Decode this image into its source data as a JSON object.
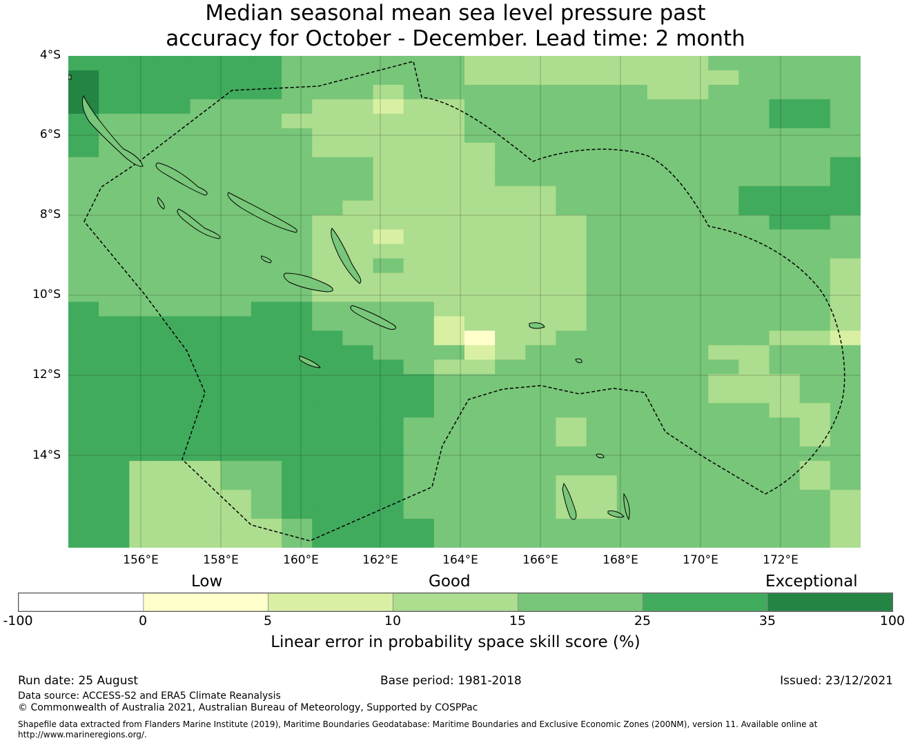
{
  "title": {
    "line1": "Median seasonal mean sea level pressure past",
    "line2": "accuracy for October - December. Lead time: 2 month"
  },
  "map": {
    "lat_labels": [
      "4°S",
      "6°S",
      "8°S",
      "10°S",
      "12°S",
      "14°S"
    ],
    "lon_labels": [
      "156°E",
      "158°E",
      "160°E",
      "162°E",
      "164°E",
      "166°E",
      "168°E",
      "170°E",
      "172°E"
    ],
    "extent": {
      "lon_min": 154.2,
      "lon_max": 174.0,
      "lat_min": -16.3,
      "lat_max": -4.0
    },
    "grid_resolution_deg": 0.83
  },
  "colorbar": {
    "category_labels": [
      "Low",
      "Good",
      "Exceptional"
    ],
    "ticks": [
      "-100",
      "0",
      "5",
      "10",
      "15",
      "25",
      "35",
      "100"
    ],
    "colors": [
      "#ffffff",
      "#ffffcc",
      "#d9f0a3",
      "#addd8e",
      "#78c679",
      "#41ab5d",
      "#238443"
    ],
    "title": "Linear error in probability space skill score (%)"
  },
  "footer": {
    "run_date": "Run date: 25 August",
    "base_period": "Base period: 1981-2018",
    "issued": "Issued: 23/12/2021",
    "data_source": "Data source: ACCESS-S2 and ERA5 Climate Reanalysis",
    "copyright": "© Commonwealth of Australia 2021, Australian Bureau of Meteorology, Supported by COSPPac",
    "shapefile_line1": "Shapefile data extracted from Flanders Marine Institute (2019), Maritime Boundaries Geodatabase: Maritime Boundaries and Exclusive Economic Zones (200NM), version 11. Available online at",
    "shapefile_line2": "http://www.marineregions.org/."
  },
  "skill_grid": {
    "legend": "1=0-5, 2=5-10, 3=10-15, 4=15-25, 5=25-35, 6=35-100",
    "rows": [
      "55555554444443333333344444",
      "65555554444443333333334444",
      "65555554443444444443344444",
      "65554444332334444444444554",
      "54444443333334444444444554",
      "54444444333334444444444444",
      "54444444333333444444444444",
      "44444444443333444444444445",
      "44444444443333444444444445",
      "44444444443333334444445555",
      "44444444433333334444445555",
      "44444444333333333444444554",
      "44444444332333333444444444",
      "44444444333333333444444444",
      "44444444334333333444444443",
      "44444444333333333444444443",
      "44444444333333333444444443",
      "54444455444433333444444443",
      "55555555444423333444444443",
      "55555555544421334444444332",
      "55555555554442344444433444",
      "55555555555433444444443444",
      "55555555555544444444433344",
      "55555555555544444444433344",
      "55555555555544444444444334",
      "55555555555444443444444434",
      "55555555555444443444444434",
      "55555555555444444444444444",
      "55333445555444444444444434",
      "55333445555444443344444434",
      "55333345555444443344444443",
      "55333345555444443344444443",
      "55333334555544444444444443",
      "55333334555544444444444443"
    ]
  }
}
